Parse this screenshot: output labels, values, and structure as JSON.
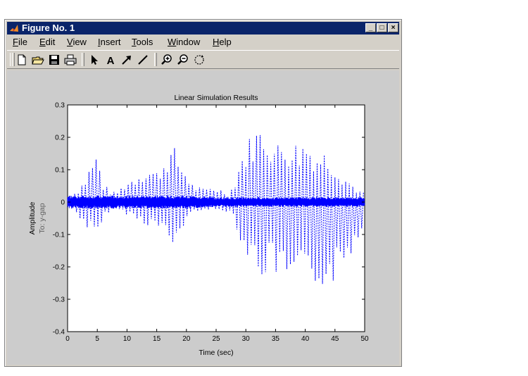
{
  "window": {
    "title": "Figure No. 1",
    "controls": {
      "minimize": "_",
      "maximize": "□",
      "close": "×"
    }
  },
  "menu": {
    "items": [
      {
        "label": "File",
        "mnemonic": "F",
        "rest": "ile"
      },
      {
        "label": "Edit",
        "mnemonic": "E",
        "rest": "dit"
      },
      {
        "label": "View",
        "mnemonic": "V",
        "rest": "iew"
      },
      {
        "label": "Insert",
        "mnemonic": "I",
        "rest": "nsert"
      },
      {
        "label": "Tools",
        "mnemonic": "T",
        "rest": "ools"
      },
      {
        "label": "Window",
        "mnemonic": "W",
        "rest": "indow"
      },
      {
        "label": "Help",
        "mnemonic": "H",
        "rest": "elp"
      }
    ]
  },
  "toolbar": {
    "buttons": [
      {
        "name": "new-figure-button",
        "icon": "new-file-icon"
      },
      {
        "name": "open-file-button",
        "icon": "open-folder-icon"
      },
      {
        "name": "save-button",
        "icon": "save-disk-icon"
      },
      {
        "name": "print-button",
        "icon": "printer-icon"
      },
      {
        "name": "edit-plot-button",
        "icon": "pointer-arrow-icon"
      },
      {
        "name": "insert-text-button",
        "icon": "text-a-icon",
        "glyph": "A"
      },
      {
        "name": "insert-arrow-button",
        "icon": "arrow-icon"
      },
      {
        "name": "insert-line-button",
        "icon": "line-icon"
      },
      {
        "name": "zoom-in-button",
        "icon": "zoom-in-icon"
      },
      {
        "name": "zoom-out-button",
        "icon": "zoom-out-icon"
      },
      {
        "name": "rotate-button",
        "icon": "rotate-3d-icon"
      }
    ]
  },
  "chart_data": {
    "type": "line",
    "title": "Linear Simulation Results",
    "xlabel": "Time (sec)",
    "ylabel": "Amplitude",
    "ylabel2": "To: y-gap",
    "xlim": [
      0,
      50
    ],
    "ylim": [
      -0.4,
      0.3
    ],
    "xticks": [
      0,
      5,
      10,
      15,
      20,
      25,
      30,
      35,
      40,
      45,
      50
    ],
    "yticks": [
      -0.4,
      -0.3,
      -0.2,
      -0.1,
      0,
      0.1,
      0.2,
      0.3
    ],
    "grid": false,
    "series": [
      {
        "style": "dotted",
        "color": "#0000ff",
        "envelope_t": [
          0,
          1,
          2,
          3,
          4,
          5,
          6,
          7,
          8,
          9,
          10,
          11,
          12,
          13,
          14,
          15,
          16,
          17,
          18,
          19,
          20,
          21,
          22,
          23,
          24,
          25,
          26,
          27,
          28,
          29,
          30,
          31,
          32,
          33,
          34,
          35,
          36,
          37,
          38,
          39,
          40,
          41,
          42,
          43,
          44,
          45,
          46,
          47,
          48,
          49,
          50
        ],
        "envelope_upper": [
          0.02,
          0.03,
          0.05,
          0.08,
          0.13,
          0.16,
          0.06,
          0.04,
          0.03,
          0.05,
          0.07,
          0.08,
          0.1,
          0.11,
          0.11,
          0.1,
          0.13,
          0.17,
          0.17,
          0.13,
          0.1,
          0.06,
          0.05,
          0.04,
          0.05,
          0.05,
          0.04,
          0.03,
          0.06,
          0.14,
          0.18,
          0.22,
          0.24,
          0.25,
          0.22,
          0.18,
          0.2,
          0.19,
          0.2,
          0.18,
          0.21,
          0.18,
          0.16,
          0.17,
          0.15,
          0.13,
          0.1,
          0.08,
          0.06,
          0.04,
          0.03
        ],
        "envelope_lower": [
          -0.02,
          -0.03,
          -0.05,
          -0.08,
          -0.1,
          -0.13,
          -0.06,
          -0.03,
          -0.02,
          -0.03,
          -0.04,
          -0.05,
          -0.06,
          -0.07,
          -0.08,
          -0.08,
          -0.1,
          -0.14,
          -0.15,
          -0.1,
          -0.06,
          -0.04,
          -0.03,
          -0.02,
          -0.03,
          -0.03,
          -0.03,
          -0.03,
          -0.05,
          -0.12,
          -0.17,
          -0.2,
          -0.23,
          -0.24,
          -0.22,
          -0.23,
          -0.26,
          -0.27,
          -0.27,
          -0.27,
          -0.27,
          -0.28,
          -0.27,
          -0.26,
          -0.27,
          -0.25,
          -0.22,
          -0.2,
          -0.15,
          -0.11,
          -0.1
        ],
        "period": 0.6
      },
      {
        "style": "solid",
        "color": "#0000ff",
        "envelope_t": [
          0,
          5,
          10,
          15,
          20,
          25,
          30,
          35,
          40,
          45,
          50
        ],
        "envelope_upper": [
          0.02,
          0.02,
          0.02,
          0.02,
          0.02,
          0.015,
          0.015,
          0.015,
          0.015,
          0.015,
          0.015
        ],
        "envelope_lower": [
          -0.02,
          -0.02,
          -0.02,
          -0.02,
          -0.02,
          -0.015,
          -0.015,
          -0.015,
          -0.015,
          -0.015,
          -0.015
        ],
        "period": 0.12
      }
    ]
  }
}
